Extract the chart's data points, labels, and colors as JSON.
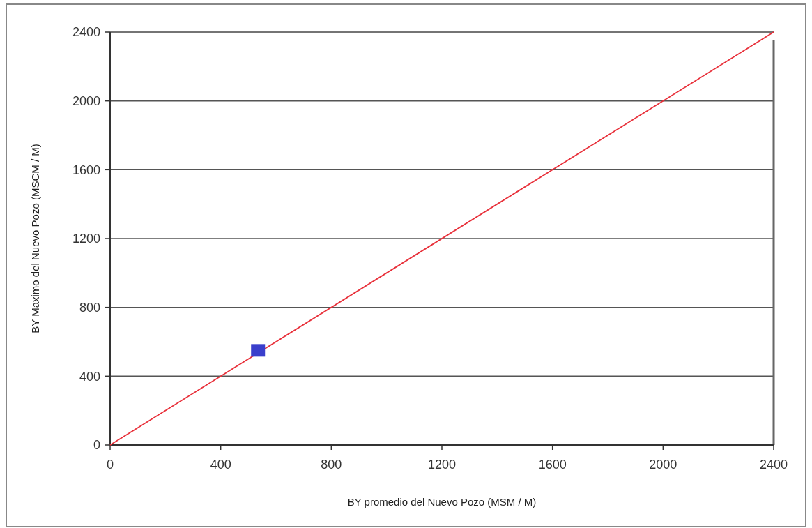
{
  "chart_data": {
    "type": "scatter",
    "xlabel": "BY promedio del Nuevo Pozo (MSM / M)",
    "ylabel": "BY Maximo del Nuevo Pozo (MSCM / M)",
    "xlim": [
      0,
      2400
    ],
    "ylim": [
      0,
      2400
    ],
    "xticks": [
      0,
      400,
      800,
      1200,
      1600,
      2000,
      2400
    ],
    "yticks": [
      0,
      400,
      800,
      1200,
      1600,
      2000,
      2400
    ],
    "grid": "y",
    "series": [
      {
        "type": "line",
        "color": "#e8303a",
        "x": [
          0,
          2400
        ],
        "values": [
          0,
          2400
        ],
        "marker": "none"
      },
      {
        "color": "#3a3fcc",
        "x": [
          535
        ],
        "values": [
          550
        ],
        "marker": "square"
      }
    ]
  }
}
